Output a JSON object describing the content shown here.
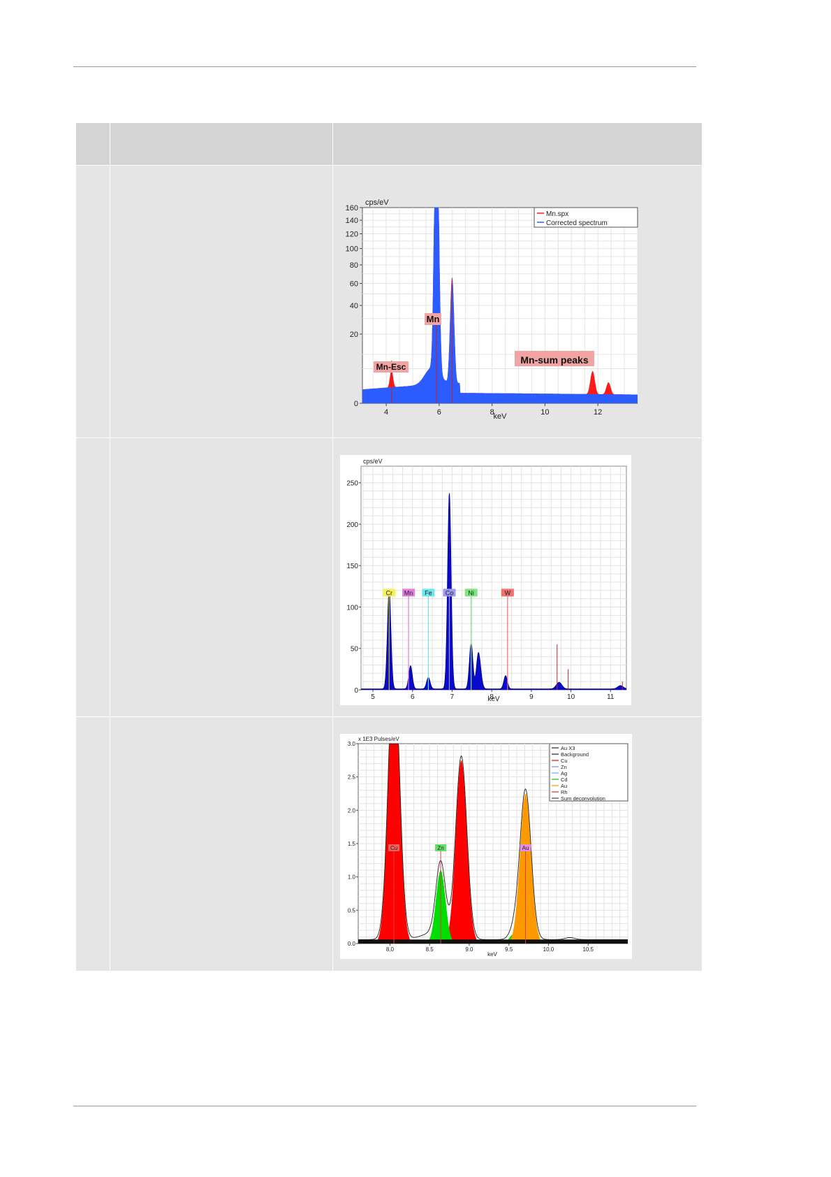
{
  "table": {
    "header": [
      "",
      "",
      ""
    ],
    "rows": [
      {
        "col1": "",
        "col2": "",
        "figure": "chart1"
      },
      {
        "col1": "",
        "col2": "",
        "figure": "chart2"
      },
      {
        "col1": "",
        "col2": "",
        "figure": "chart3"
      }
    ]
  },
  "chart_data": [
    {
      "id": "chart1",
      "type": "area",
      "ylabel": "cps/eV",
      "xlabel": "keV",
      "xlim": [
        3.1,
        13.5
      ],
      "x_ticks": [
        4,
        6,
        8,
        10,
        12
      ],
      "y_ticks": [
        0,
        20,
        40,
        60,
        80,
        100,
        120,
        140,
        160
      ],
      "y_scale": "square-root (nonlinear)",
      "ylim": [
        0,
        160
      ],
      "legend": [
        "Mn.spx",
        "Corrected spectrum"
      ],
      "legend_position": "top-right",
      "colors": {
        "spectrum": "#ff1a1a",
        "corrected": "#2a5cff"
      },
      "annotations": [
        "Mn-Esc",
        "Mn",
        "Mn-sum peaks"
      ],
      "peaks": [
        {
          "x": 4.2,
          "y": 4
        },
        {
          "x": 5.9,
          "y": 160
        },
        {
          "x": 6.5,
          "y": 65
        },
        {
          "x": 11.8,
          "y": 4
        },
        {
          "x": 12.4,
          "y": 1.5
        }
      ],
      "grid": true
    },
    {
      "id": "chart2",
      "type": "area",
      "ylabel": "cps/eV",
      "xlabel": "keV",
      "xlim": [
        4.7,
        11.4
      ],
      "ylim": [
        0,
        270
      ],
      "x_ticks": [
        5,
        6,
        7,
        8,
        9,
        10,
        11
      ],
      "y_ticks": [
        0,
        50,
        100,
        150,
        200,
        250
      ],
      "colors": {
        "spectrum": "#0a0acc"
      },
      "element_labels": [
        {
          "label": "Cr",
          "x": 5.41,
          "color": "#f2f25a"
        },
        {
          "label": "Mn",
          "x": 5.9,
          "color": "#e07ee0"
        },
        {
          "label": "Fe",
          "x": 6.4,
          "color": "#6ee6ee"
        },
        {
          "label": "Co",
          "x": 6.93,
          "color": "#9a9aee"
        },
        {
          "label": "Ni",
          "x": 7.48,
          "color": "#7ee67e"
        },
        {
          "label": "W",
          "x": 8.4,
          "color": "#ee7070"
        }
      ],
      "peaks": [
        {
          "x": 5.41,
          "y": 120
        },
        {
          "x": 5.95,
          "y": 28
        },
        {
          "x": 6.4,
          "y": 14
        },
        {
          "x": 6.93,
          "y": 237
        },
        {
          "x": 7.48,
          "y": 55
        },
        {
          "x": 7.65,
          "y": 30
        },
        {
          "x": 8.35,
          "y": 16
        },
        {
          "x": 9.7,
          "y": 8
        },
        {
          "x": 11.25,
          "y": 4
        }
      ],
      "grid": true
    },
    {
      "id": "chart3",
      "type": "area",
      "ylabel": "x 1E3 Pulses/eV",
      "xlabel": "keV",
      "xlim": [
        7.6,
        11.0
      ],
      "ylim": [
        0,
        3.0
      ],
      "x_ticks": [
        8.0,
        8.5,
        9.0,
        9.5,
        10.0,
        10.5
      ],
      "x_tick_labels": [
        "8.0",
        "8.5",
        "9.0",
        "9.5",
        "10.0",
        "10.5"
      ],
      "y_ticks": [
        0,
        0.5,
        1.0,
        1.5,
        2.0,
        2.5,
        3.0
      ],
      "y_tick_labels": [
        "0.0",
        "0.5",
        "1.0",
        "1.5",
        "2.0",
        "2.5",
        "3.0"
      ],
      "legend": [
        "Au X3",
        "Background",
        "Cu",
        "Zn",
        "Ag",
        "Cd",
        "Au",
        "Rh",
        "Sum deconvolution"
      ],
      "legend_position": "top-right",
      "legend_colors": [
        "#222222",
        "#222222",
        "#ff0000",
        "#8888ff",
        "#66aaff",
        "#00cc00",
        "#ff9900",
        "#cc3333",
        "#444444"
      ],
      "element_labels": [
        {
          "label": "Cu",
          "x": 8.05,
          "color": "#f06060"
        },
        {
          "label": "Zn",
          "x": 8.64,
          "color": "#66dd66"
        },
        {
          "label": "Au",
          "x": 9.71,
          "color": "#e38ee3"
        }
      ],
      "series": [
        {
          "name": "Cu",
          "color": "#ff0000",
          "peaks": [
            {
              "x": 8.05,
              "y": 3.0
            },
            {
              "x": 8.9,
              "y": 2.75
            }
          ]
        },
        {
          "name": "Zn",
          "color": "#00dd00",
          "peaks": [
            {
              "x": 8.64,
              "y": 1.1
            },
            {
              "x": 9.57,
              "y": 0.15
            }
          ]
        },
        {
          "name": "Au",
          "color": "#ff9900",
          "peaks": [
            {
              "x": 9.71,
              "y": 2.25
            },
            {
              "x": 10.27,
              "y": 0.03
            }
          ]
        }
      ],
      "grid": true
    }
  ]
}
